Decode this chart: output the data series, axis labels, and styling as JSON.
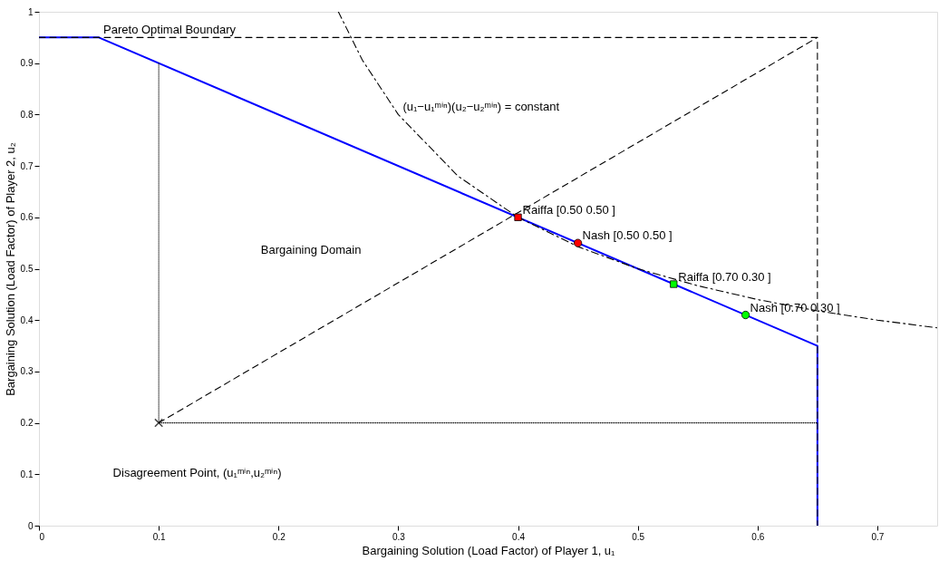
{
  "chart_data": {
    "type": "line",
    "xlabel": "Bargaining Solution (Load Factor) of Player 1, u₁",
    "ylabel": "Bargaining Solution (Load Factor) of Player 2, u₂",
    "xlim": [
      0,
      0.75
    ],
    "ylim": [
      0,
      1
    ],
    "xticks": [
      0,
      0.1,
      0.2,
      0.3,
      0.4,
      0.5,
      0.6,
      0.7
    ],
    "yticks": [
      0,
      0.1,
      0.2,
      0.3,
      0.4,
      0.5,
      0.6,
      0.7,
      0.8,
      0.9,
      1
    ],
    "grid": false,
    "series": [
      {
        "color": "#0000ff",
        "line_style": "solid",
        "x": [
          0,
          0.05,
          0.65,
          0.65
        ],
        "values": [
          0.95,
          0.95,
          0.35,
          0
        ]
      },
      {
        "color": "#000000",
        "line_style": "dashed",
        "x": [
          0,
          0.65,
          0.65
        ],
        "values": [
          0.95,
          0.95,
          0
        ]
      },
      {
        "color": "#000000",
        "line_style": "dashed",
        "x": [
          0.1,
          0.65
        ],
        "values": [
          0.2,
          0.95
        ]
      },
      {
        "color": "#000000",
        "line_style": "dotted",
        "x": [
          0.1,
          0.1,
          0.65
        ],
        "values": [
          0.9,
          0.2,
          0.2
        ]
      },
      {
        "color": "#000000",
        "line_style": "dashdot",
        "x": [
          0.25,
          0.27,
          0.3,
          0.35,
          0.4,
          0.45,
          0.5,
          0.55,
          0.6,
          0.65,
          0.7,
          0.75
        ],
        "values": [
          1.0,
          0.906,
          0.8,
          0.68,
          0.6,
          0.543,
          0.5,
          0.467,
          0.44,
          0.418,
          0.4,
          0.385
        ]
      },
      {
        "type": "scatter",
        "marker": "square",
        "color": "#ff0000",
        "x": [
          0.4
        ],
        "values": [
          0.6
        ]
      },
      {
        "type": "scatter",
        "marker": "circle",
        "color": "#ff0000",
        "x": [
          0.45
        ],
        "values": [
          0.55
        ]
      },
      {
        "type": "scatter",
        "marker": "square",
        "color": "#00ff00",
        "x": [
          0.53
        ],
        "values": [
          0.47
        ]
      },
      {
        "type": "scatter",
        "marker": "circle",
        "color": "#00ff00",
        "x": [
          0.59
        ],
        "values": [
          0.41
        ]
      },
      {
        "type": "scatter",
        "marker": "cross",
        "color": "#000000",
        "x": [
          0.1
        ],
        "values": [
          0.2
        ]
      }
    ],
    "annotations": [
      {
        "text": "Pareto Optimal Boundary",
        "x": 0.05,
        "y": 0.95
      },
      {
        "text": "(u₁−u₁ᵐⁱⁿ)(u₂−u₂ᵐⁱⁿ) = constant",
        "x": 0.3,
        "y": 0.8
      },
      {
        "text": "Raiffa [0.50 0.50 ]",
        "x": 0.4,
        "y": 0.6
      },
      {
        "text": "Nash [0.50 0.50 ]",
        "x": 0.45,
        "y": 0.55
      },
      {
        "text": "Raiffa [0.70 0.30 ]",
        "x": 0.53,
        "y": 0.47
      },
      {
        "text": "Nash [0.70 0.30 ]",
        "x": 0.59,
        "y": 0.41
      },
      "Bargaining Domain",
      "Disagreement Point, (u₁ᵐⁱⁿ,u₂ᵐⁱⁿ)"
    ]
  }
}
